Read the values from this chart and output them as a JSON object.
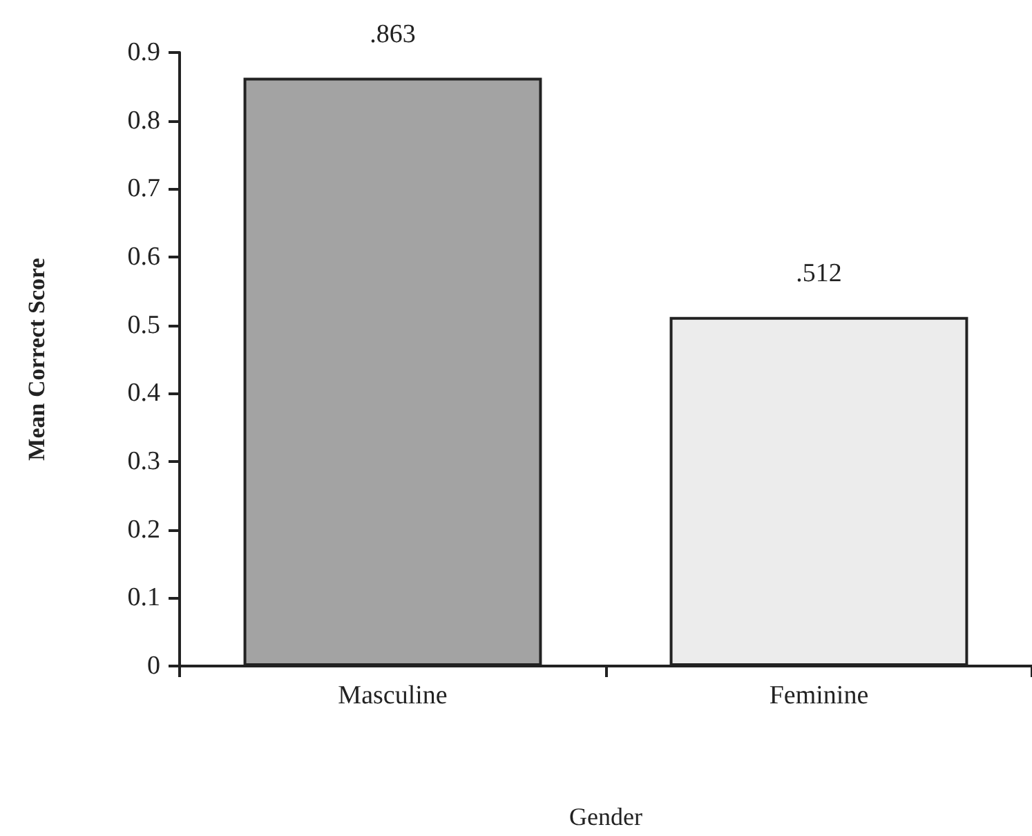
{
  "chart_data": {
    "type": "bar",
    "xlabel": "Gender",
    "ylabel": "Mean Correct Score",
    "categories": [
      "Masculine",
      "Feminine"
    ],
    "values": [
      0.863,
      0.512
    ],
    "colors": [
      "#a3a3a3",
      "#ececec"
    ],
    "value_labels": [
      ".863",
      ".512"
    ],
    "ylim": [
      0,
      0.9
    ],
    "yticks": [
      0,
      0.1,
      0.2,
      0.3,
      0.4,
      0.5,
      0.6,
      0.7,
      0.8,
      0.9
    ],
    "grid": false
  }
}
